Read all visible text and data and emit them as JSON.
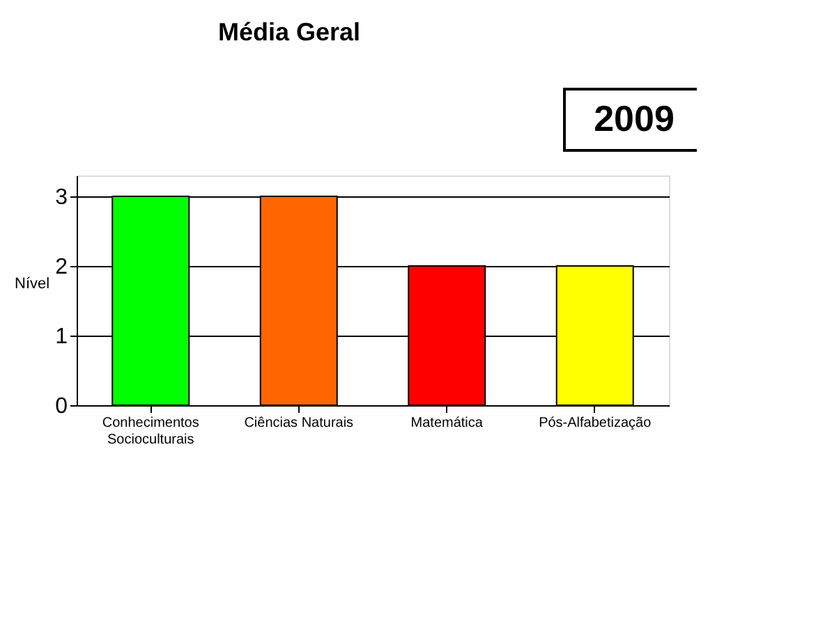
{
  "chart_data": {
    "type": "bar",
    "title": "Média Geral",
    "ylabel": "Nível",
    "categories": [
      "Conhecimentos Socioculturais",
      "Ciências Naturais",
      "Matemática",
      "Pós-Alfabetização"
    ],
    "values": [
      3,
      3,
      2,
      2
    ],
    "colors": [
      "#00ff00",
      "#ff6600",
      "#ff0000",
      "#ffff00"
    ],
    "ylim": [
      0,
      3.3
    ],
    "yticks": [
      0,
      1,
      2,
      3
    ],
    "grid": "y",
    "annotations": [
      "2009"
    ]
  }
}
